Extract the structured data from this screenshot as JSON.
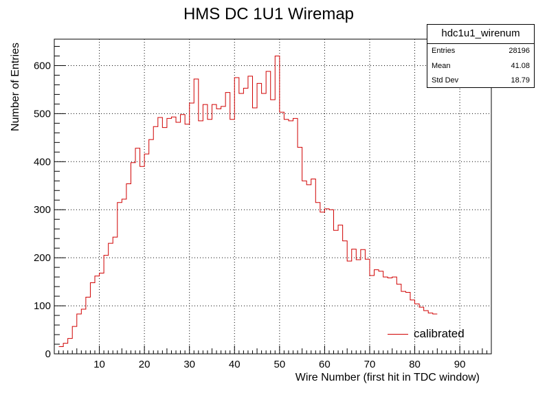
{
  "chart_data": {
    "type": "histogram",
    "title": "HMS DC 1U1 Wiremap",
    "xlabel": "Wire Number (first hit in TDC window)",
    "ylabel": "Number of Entries",
    "xlim": [
      0,
      97
    ],
    "ylim": [
      0,
      655
    ],
    "x_ticks": [
      10,
      20,
      30,
      40,
      50,
      60,
      70,
      80,
      90
    ],
    "y_ticks": [
      0,
      100,
      200,
      300,
      400,
      500,
      600
    ],
    "grid": true,
    "line_color": "#d00000",
    "bin_width": 1,
    "x_start": 1,
    "values": [
      15,
      22,
      32,
      57,
      83,
      93,
      118,
      148,
      162,
      168,
      205,
      230,
      243,
      315,
      322,
      354,
      398,
      428,
      390,
      416,
      446,
      473,
      492,
      471,
      490,
      493,
      482,
      498,
      478,
      522,
      572,
      485,
      519,
      488,
      519,
      510,
      515,
      544,
      488,
      575,
      542,
      553,
      578,
      512,
      563,
      542,
      588,
      529,
      620,
      503,
      488,
      485,
      490,
      430,
      360,
      352,
      364,
      315,
      295,
      302,
      300,
      257,
      268,
      235,
      193,
      218,
      196,
      217,
      197,
      163,
      175,
      172,
      160,
      158,
      160,
      145,
      130,
      128,
      112,
      104,
      97,
      90,
      85,
      83
    ]
  },
  "stats_box": {
    "name": "hdc1u1_wirenum",
    "entries_label": "Entries",
    "entries_value": "28196",
    "mean_label": "Mean",
    "mean_value": "41.08",
    "stddev_label": "Std Dev",
    "stddev_value": "18.79"
  },
  "legend": {
    "label": "calibrated"
  }
}
